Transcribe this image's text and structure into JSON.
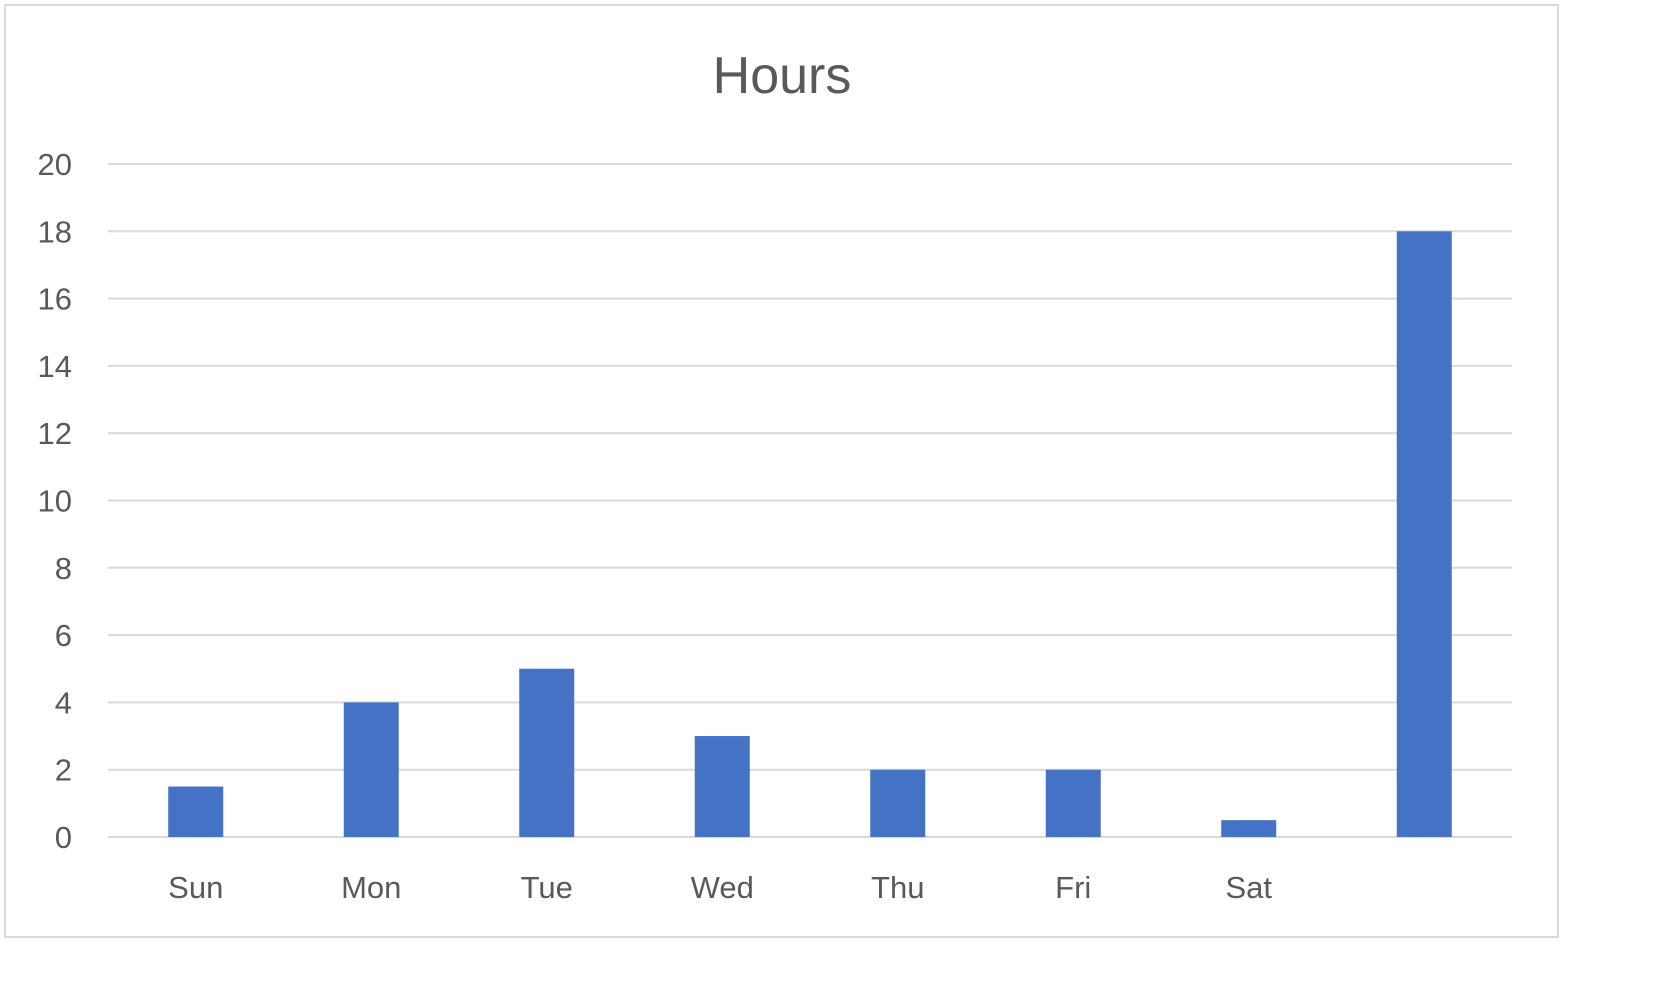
{
  "chart_data": {
    "type": "bar",
    "title": "Hours",
    "categories": [
      "Sun",
      "Mon",
      "Tue",
      "Wed",
      "Thu",
      "Fri",
      "Sat",
      ""
    ],
    "values": [
      1.5,
      4,
      5,
      3,
      2,
      2,
      0.5,
      18
    ],
    "xlabel": "",
    "ylabel": "",
    "ylim": [
      0,
      20
    ],
    "yticks": [
      0,
      2,
      4,
      6,
      8,
      10,
      12,
      14,
      16,
      18,
      20
    ],
    "grid": true,
    "legend": "none",
    "colors": {
      "bar": "#4472c4",
      "grid": "#d9d9d9",
      "text": "#595959"
    }
  }
}
